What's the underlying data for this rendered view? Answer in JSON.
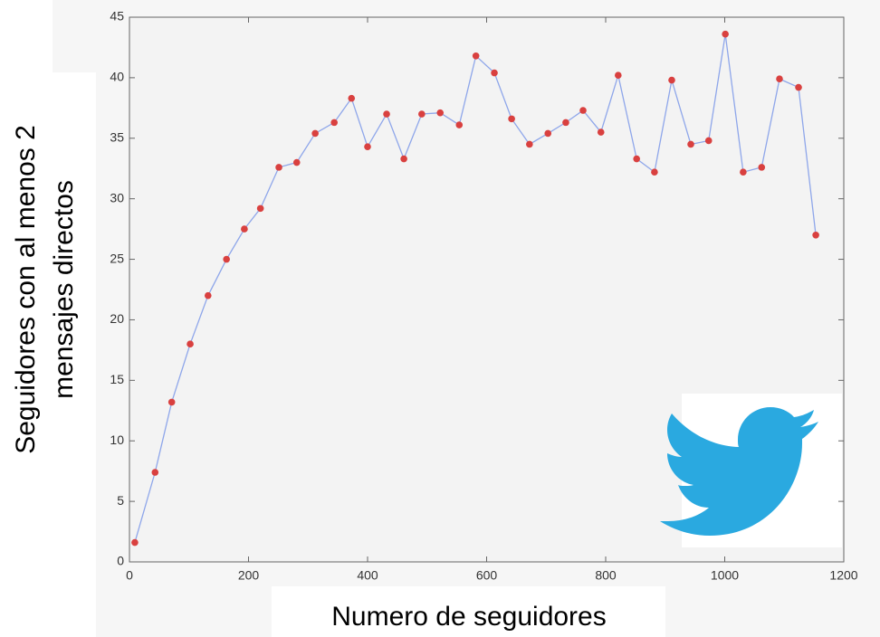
{
  "chart_data": {
    "type": "line",
    "xlabel": "Numero de seguidores",
    "ylabel": [
      "Seguidores con al menos 2",
      "mensajes directos"
    ],
    "x": [
      9,
      43,
      71,
      102,
      132,
      163,
      193,
      220,
      251,
      281,
      312,
      344,
      373,
      400,
      432,
      461,
      491,
      522,
      554,
      582,
      613,
      642,
      672,
      703,
      733,
      762,
      792,
      821,
      852,
      882,
      911,
      943,
      973,
      1001,
      1031,
      1062,
      1092,
      1124,
      1153
    ],
    "values": [
      1.6,
      7.4,
      13.2,
      18.0,
      22.0,
      25.0,
      27.5,
      29.2,
      32.6,
      33.0,
      35.4,
      36.3,
      38.3,
      34.3,
      37.0,
      33.3,
      37.0,
      37.1,
      36.1,
      41.8,
      40.4,
      36.6,
      34.5,
      35.4,
      36.3,
      37.3,
      35.5,
      40.2,
      33.3,
      32.2,
      39.8,
      34.5,
      34.8,
      43.6,
      32.2,
      32.6,
      39.9,
      39.2,
      27.0
    ],
    "color": "#8ea6ea",
    "marker_color": "#d9403f",
    "xlim": [
      0,
      1200
    ],
    "xticks": [
      0,
      200,
      400,
      600,
      800,
      1000,
      1200
    ],
    "ylim": [
      0,
      45
    ],
    "yticks": [
      0,
      5,
      10,
      15,
      20,
      25,
      30,
      35,
      40,
      45
    ],
    "grid": false
  }
}
